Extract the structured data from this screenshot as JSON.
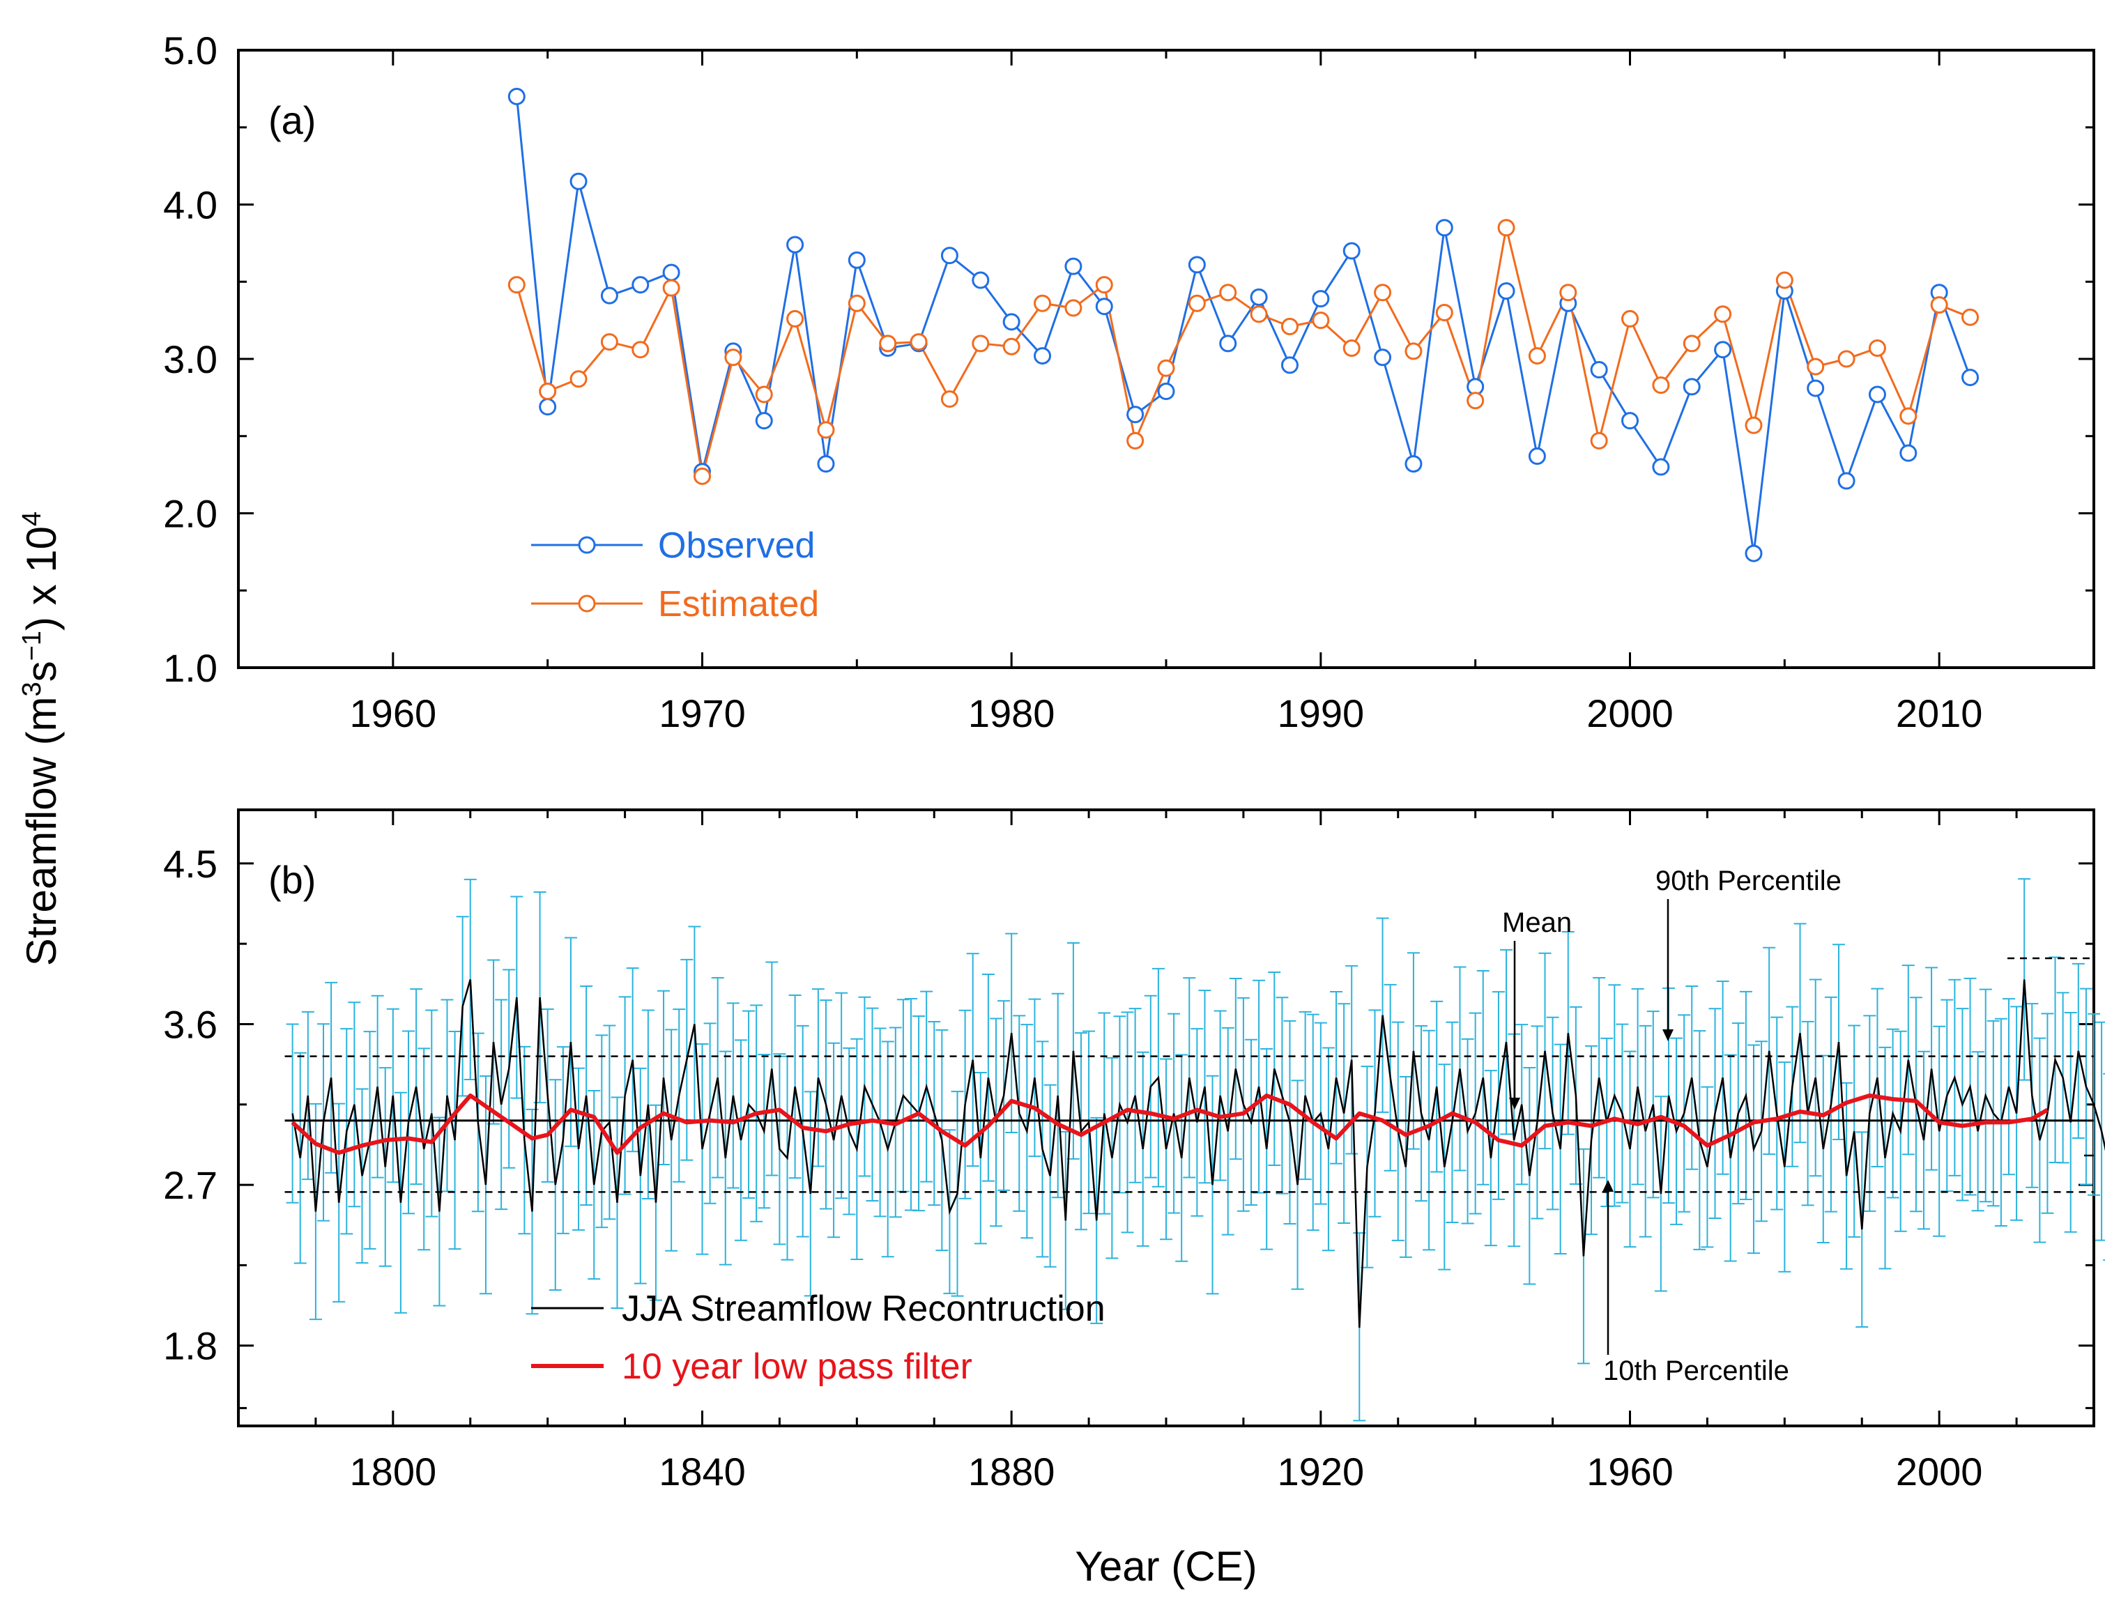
{
  "chart_data": [
    {
      "panel": "(a)",
      "type": "line",
      "xlim": [
        1955,
        2015
      ],
      "ylim": [
        1.0,
        5.0
      ],
      "xticks": [
        1960,
        1970,
        1980,
        1990,
        2000,
        2010
      ],
      "yticks": [
        "1.0",
        "2.0",
        "3.0",
        "4.0",
        "5.0"
      ],
      "legend_position": "lower-left",
      "series": [
        {
          "name": "Observed",
          "color": "#1f6fe5",
          "marker": "open-circle",
          "x": [
            1964,
            1965,
            1966,
            1967,
            1968,
            1969,
            1970,
            1971,
            1972,
            1973,
            1974,
            1975,
            1976,
            1977,
            1978,
            1979,
            1980,
            1981,
            1982,
            1983,
            1984,
            1985,
            1986,
            1987,
            1988,
            1989,
            1990,
            1991,
            1992,
            1993,
            1994,
            1995,
            1996,
            1997,
            1998,
            1999,
            2000,
            2001,
            2002,
            2003,
            2004,
            2005,
            2006,
            2007,
            2008,
            2009,
            2010,
            2011
          ],
          "y": [
            4.7,
            2.69,
            4.15,
            3.41,
            3.48,
            3.56,
            2.27,
            3.05,
            2.6,
            3.74,
            2.32,
            3.64,
            3.07,
            3.1,
            3.67,
            3.51,
            3.24,
            3.02,
            3.6,
            3.34,
            2.64,
            2.79,
            3.61,
            3.1,
            3.4,
            2.96,
            3.39,
            3.7,
            3.01,
            2.32,
            3.85,
            2.82,
            3.44,
            2.37,
            3.36,
            2.93,
            2.6,
            2.3,
            2.82,
            3.06,
            1.74,
            3.44,
            2.81,
            2.21,
            2.77,
            2.39,
            3.43,
            2.88
          ]
        },
        {
          "name": "Estimated",
          "color": "#f26b1d",
          "marker": "open-circle",
          "x": [
            1964,
            1965,
            1966,
            1967,
            1968,
            1969,
            1970,
            1971,
            1972,
            1973,
            1974,
            1975,
            1976,
            1977,
            1978,
            1979,
            1980,
            1981,
            1982,
            1983,
            1984,
            1985,
            1986,
            1987,
            1988,
            1989,
            1990,
            1991,
            1992,
            1993,
            1994,
            1995,
            1996,
            1997,
            1998,
            1999,
            2000,
            2001,
            2002,
            2003,
            2004,
            2005,
            2006,
            2007,
            2008,
            2009,
            2010,
            2011
          ],
          "y": [
            3.48,
            2.79,
            2.87,
            3.11,
            3.06,
            3.46,
            2.24,
            3.01,
            2.77,
            3.26,
            2.54,
            3.36,
            3.1,
            3.11,
            2.74,
            3.1,
            3.08,
            3.36,
            3.33,
            3.48,
            2.47,
            2.94,
            3.36,
            3.43,
            3.29,
            3.21,
            3.25,
            3.07,
            3.43,
            3.05,
            3.3,
            2.73,
            3.85,
            3.02,
            3.43,
            2.47,
            3.26,
            2.83,
            3.1,
            3.29,
            2.57,
            3.51,
            2.95,
            3.0,
            3.07,
            2.63,
            3.35,
            3.27
          ]
        }
      ]
    },
    {
      "panel": "(b)",
      "type": "line",
      "xlim": [
        1780,
        2020
      ],
      "ylim": [
        1.35,
        4.8
      ],
      "xticks": [
        1800,
        1840,
        1880,
        1920,
        1960,
        2000
      ],
      "yticks": [
        "1.8",
        "2.7",
        "3.6",
        "4.5"
      ],
      "legend_position": "lower-left",
      "mean": 3.06,
      "p10": 2.66,
      "p90": 3.42,
      "reconstruction": {
        "name": "JJA Streamflow Recontruction",
        "color": "#000000",
        "start_year": 1787,
        "values": [
          3.1,
          2.85,
          3.2,
          2.55,
          3.05,
          3.3,
          2.6,
          3.0,
          3.15,
          2.75,
          2.95,
          3.25,
          2.8,
          3.2,
          2.6,
          3.05,
          3.25,
          2.9,
          3.1,
          2.55,
          3.2,
          2.95,
          3.7,
          3.85,
          3.05,
          2.7,
          3.5,
          3.15,
          3.35,
          3.75,
          2.95,
          2.55,
          3.75,
          3.2,
          2.7,
          2.95,
          3.5,
          2.9,
          3.2,
          2.7,
          3.0,
          3.05,
          2.6,
          3.2,
          3.4,
          2.75,
          3.15,
          2.6,
          3.3,
          2.95,
          3.2,
          3.4,
          3.6,
          2.9,
          3.1,
          3.3,
          2.85,
          3.2,
          2.95,
          3.15,
          3.1,
          3.0,
          3.35,
          2.9,
          2.85,
          3.25,
          3.0,
          2.65,
          3.3,
          3.15,
          2.95,
          3.2,
          3.0,
          2.9,
          3.25,
          3.15,
          3.05,
          2.9,
          3.05,
          3.2,
          3.15,
          3.1,
          3.25,
          3.1,
          2.95,
          2.55,
          2.65,
          3.15,
          3.4,
          2.85,
          3.3,
          3.05,
          3.2,
          3.55,
          3.1,
          3.0,
          3.3,
          2.9,
          2.75,
          3.2,
          2.5,
          3.45,
          3.0,
          3.05,
          2.5,
          3.1,
          2.85,
          3.15,
          3.05,
          3.2,
          2.9,
          3.25,
          3.3,
          2.9,
          3.1,
          2.85,
          3.3,
          3.05,
          3.25,
          2.7,
          3.2,
          3.0,
          3.35,
          3.15,
          3.05,
          3.25,
          2.9,
          3.35,
          3.2,
          3.05,
          2.7,
          3.2,
          3.05,
          3.1,
          2.9,
          3.3,
          3.1,
          3.4,
          1.9,
          2.8,
          3.1,
          3.65,
          3.3,
          3.0,
          2.8,
          3.45,
          3.1,
          2.95,
          3.25,
          2.8,
          3.05,
          3.35,
          3.0,
          3.1,
          3.3,
          2.85,
          3.2,
          3.5,
          2.95,
          3.15,
          2.75,
          3.05,
          3.45,
          3.1,
          2.9,
          3.55,
          3.2,
          2.3,
          2.95,
          3.3,
          3.05,
          3.2,
          3.1,
          2.9,
          3.25,
          3.0,
          3.15,
          2.65,
          3.2,
          3.0,
          3.1,
          3.3,
          2.95,
          2.8,
          3.1,
          3.3,
          2.85,
          3.1,
          3.2,
          2.9,
          3.0,
          3.45,
          3.1,
          2.8,
          3.25,
          3.55,
          3.1,
          3.3,
          2.9,
          3.15,
          3.5,
          2.75,
          3.0,
          2.45,
          3.1,
          3.3,
          2.85,
          3.1,
          3.0,
          3.4,
          3.15,
          2.95,
          3.35,
          3.0,
          3.2,
          3.3,
          3.15,
          3.25,
          3.0,
          3.2,
          3.1,
          3.05,
          3.25,
          3.1,
          3.85,
          3.2,
          2.95,
          3.1,
          3.4,
          3.3,
          3.05,
          3.45,
          3.25,
          3.15,
          3.0,
          2.8,
          3.2,
          2.9,
          3.35,
          3.0,
          3.3,
          3.1,
          3.0,
          2.9,
          3.3,
          3.2
        ]
      },
      "filter": {
        "name": "10 year low pass filter",
        "color": "#e8141b",
        "x": [
          1787,
          1790,
          1793,
          1796,
          1799,
          1802,
          1805,
          1808,
          1810,
          1812,
          1815,
          1818,
          1820,
          1823,
          1826,
          1829,
          1832,
          1835,
          1838,
          1841,
          1844,
          1847,
          1850,
          1853,
          1856,
          1859,
          1862,
          1865,
          1868,
          1871,
          1874,
          1877,
          1880,
          1883,
          1886,
          1889,
          1892,
          1895,
          1898,
          1901,
          1904,
          1907,
          1910,
          1913,
          1916,
          1919,
          1922,
          1925,
          1928,
          1931,
          1934,
          1937,
          1940,
          1943,
          1946,
          1949,
          1952,
          1955,
          1958,
          1961,
          1964,
          1967,
          1970,
          1973,
          1976,
          1979,
          1982,
          1985,
          1988,
          1991,
          1994,
          1997,
          2000,
          2003,
          2006,
          2009,
          2012,
          2014
        ],
        "y": [
          3.05,
          2.93,
          2.88,
          2.92,
          2.95,
          2.96,
          2.94,
          3.1,
          3.2,
          3.14,
          3.05,
          2.96,
          2.98,
          3.12,
          3.08,
          2.88,
          3.02,
          3.1,
          3.05,
          3.06,
          3.05,
          3.1,
          3.12,
          3.02,
          3.0,
          3.04,
          3.06,
          3.04,
          3.1,
          3.0,
          2.92,
          3.03,
          3.17,
          3.13,
          3.04,
          2.98,
          3.05,
          3.12,
          3.1,
          3.07,
          3.12,
          3.08,
          3.1,
          3.2,
          3.15,
          3.05,
          2.96,
          3.1,
          3.06,
          2.98,
          3.03,
          3.1,
          3.05,
          2.95,
          2.92,
          3.03,
          3.05,
          3.03,
          3.07,
          3.04,
          3.08,
          3.03,
          2.92,
          2.98,
          3.05,
          3.07,
          3.11,
          3.09,
          3.16,
          3.2,
          3.18,
          3.17,
          3.05,
          3.03,
          3.05,
          3.05,
          3.07,
          3.12
        ]
      },
      "annotations": {
        "mean": "Mean",
        "p90": "90th Percentile",
        "p10": "10th Percentile"
      }
    }
  ],
  "ylabel_base": "Streamflow (m",
  "ylabel_sup1": "3",
  "ylabel_mid": "s",
  "ylabel_sup2": "−1",
  "ylabel_end": ") x 10",
  "ylabel_sup3": "4",
  "xlabel": "Year (CE)"
}
